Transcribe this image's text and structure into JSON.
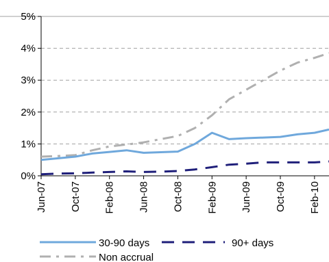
{
  "chart_data": {
    "type": "line",
    "categories": [
      "Jun-07",
      "Oct-07",
      "Feb-08",
      "Jun-08",
      "Oct-08",
      "Feb-09",
      "Jun-09",
      "Oct-09",
      "Feb-10"
    ],
    "x": [
      0,
      1,
      2,
      3,
      4,
      5,
      6,
      7,
      8
    ],
    "series": [
      {
        "name": "30-90 days",
        "color": "#6fa8dc",
        "style": "solid",
        "x": [
          0,
          0.5,
          1,
          1.5,
          2,
          2.5,
          3,
          3.5,
          4,
          4.5,
          5,
          5.5,
          6,
          6.5,
          7,
          7.5,
          8,
          8.5
        ],
        "values": [
          0.5,
          0.55,
          0.6,
          0.7,
          0.75,
          0.8,
          0.72,
          0.74,
          0.76,
          1.0,
          1.35,
          1.15,
          1.18,
          1.2,
          1.22,
          1.3,
          1.35,
          1.45
        ]
      },
      {
        "name": "90+ days",
        "color": "#1f1f7a",
        "style": "dash",
        "x": [
          0,
          0.5,
          1,
          1.5,
          2,
          2.5,
          3,
          3.5,
          4,
          4.5,
          5,
          5.5,
          6,
          6.5,
          7,
          7.5,
          8,
          8.5
        ],
        "values": [
          0.05,
          0.07,
          0.08,
          0.1,
          0.12,
          0.14,
          0.12,
          0.13,
          0.15,
          0.2,
          0.27,
          0.35,
          0.38,
          0.42,
          0.42,
          0.42,
          0.42,
          0.45
        ]
      },
      {
        "name": "Non accrual",
        "color": "#b0b0b0",
        "style": "dashdot",
        "x": [
          0,
          0.5,
          1,
          1.5,
          2,
          2.5,
          3,
          3.5,
          4,
          4.5,
          5,
          5.5,
          6,
          6.5,
          7,
          7.5,
          8,
          8.5
        ],
        "values": [
          0.6,
          0.62,
          0.65,
          0.8,
          0.92,
          0.98,
          1.05,
          1.15,
          1.25,
          1.5,
          1.9,
          2.4,
          2.7,
          3.0,
          3.3,
          3.55,
          3.7,
          3.85
        ]
      }
    ],
    "ylim": [
      0,
      5
    ],
    "yticks": [
      0,
      1,
      2,
      3,
      4,
      5
    ],
    "ytick_labels": [
      "0%",
      "1%",
      "2%",
      "3%",
      "4%",
      "5%"
    ],
    "grid": true,
    "legend_placement": "bottom"
  }
}
